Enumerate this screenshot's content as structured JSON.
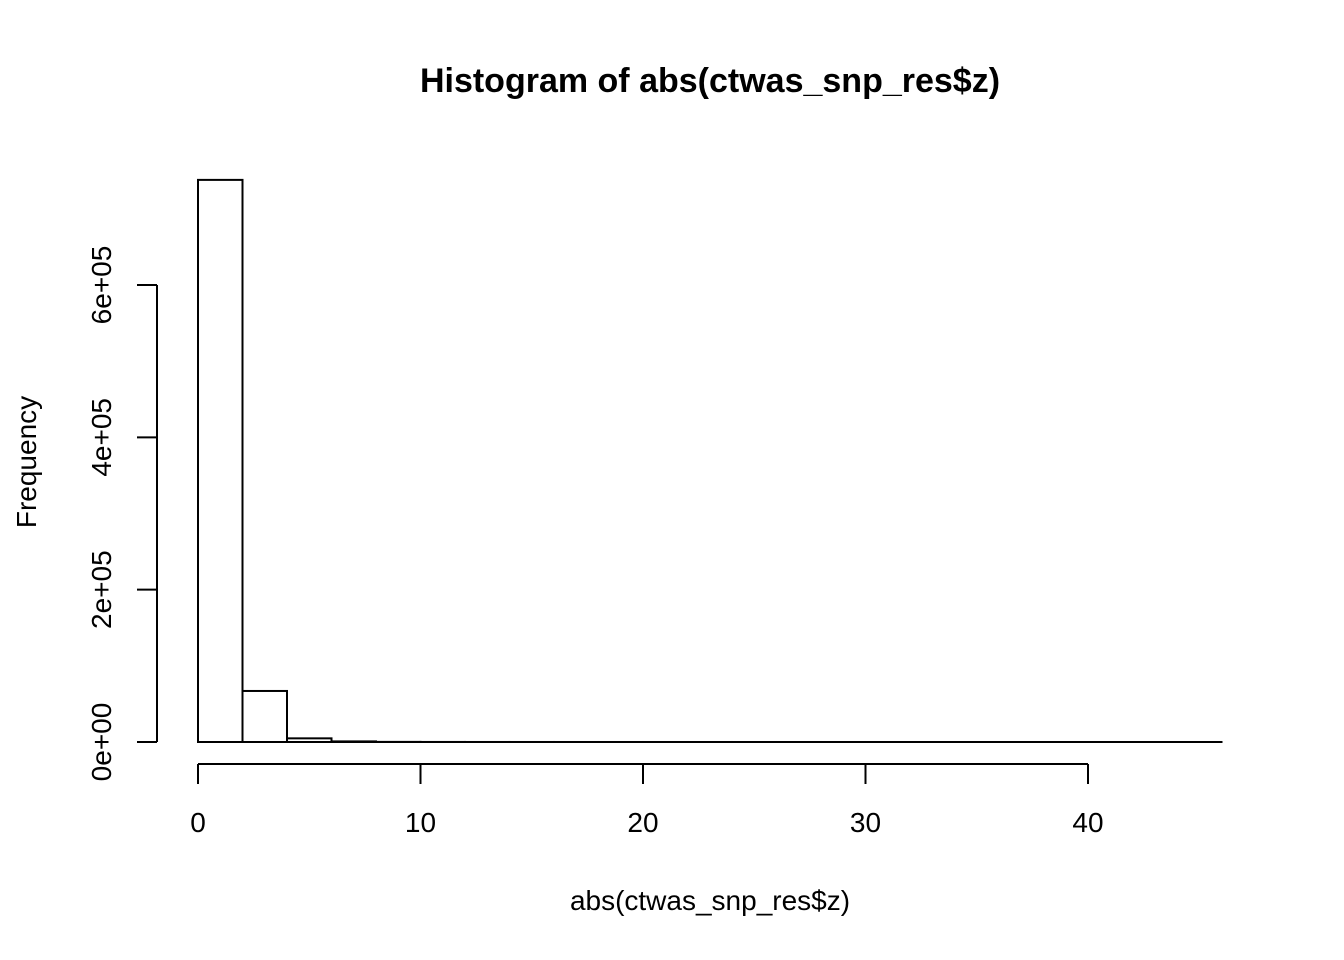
{
  "chart_data": {
    "type": "bar",
    "title": "Histogram of abs(ctwas_snp_res$z)",
    "xlabel": "abs(ctwas_snp_res$z)",
    "ylabel": "Frequency",
    "bin_edges": [
      0,
      2,
      4,
      6,
      8,
      10,
      12,
      14,
      16,
      18,
      20,
      22,
      24,
      26,
      28,
      30,
      32,
      34,
      36,
      38,
      40,
      42,
      44,
      46
    ],
    "values": [
      738000,
      67000,
      4800,
      800,
      150,
      60,
      30,
      20,
      15,
      10,
      8,
      6,
      5,
      4,
      3,
      3,
      2,
      2,
      2,
      1,
      1,
      1,
      1
    ],
    "xlim": [
      0,
      46
    ],
    "ylim": [
      0,
      738000
    ],
    "x_ticks": [
      0,
      10,
      20,
      30,
      40
    ],
    "x_tick_labels": [
      "0",
      "10",
      "20",
      "30",
      "40"
    ],
    "y_ticks": [
      0,
      200000,
      400000,
      600000
    ],
    "y_tick_labels": [
      "0e+00",
      "2e+05",
      "4e+05",
      "6e+05"
    ],
    "grid": false,
    "legend": "none"
  }
}
